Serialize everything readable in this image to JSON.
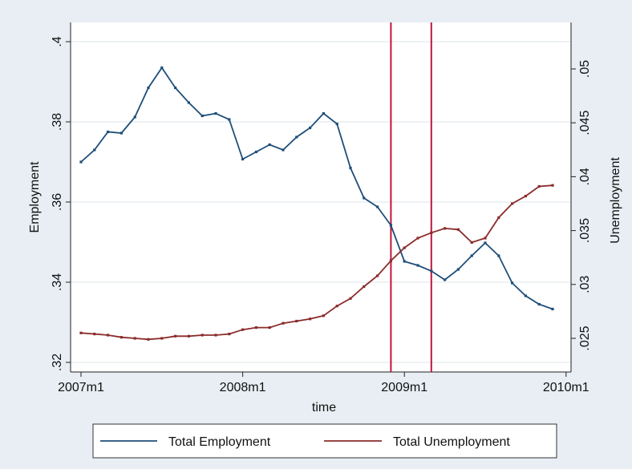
{
  "chart_data": {
    "type": "line",
    "xlabel": "time",
    "ylabel_left": "Employment",
    "ylabel_right": "Unemployment",
    "x_ticks": [
      "2007m1",
      "2008m1",
      "2009m1",
      "2010m1"
    ],
    "y_left_ticks": [
      ".32",
      ".34",
      ".36",
      ".38",
      ".4"
    ],
    "y_right_ticks": [
      ".025",
      ".03",
      ".035",
      ".04",
      ".045",
      ".05"
    ],
    "x_range_months": [
      0,
      36
    ],
    "y_left_range": [
      0.32,
      0.4
    ],
    "y_right_range": [
      0.025,
      0.05
    ],
    "grid": "horizontal",
    "legend_position": "bottom",
    "vlines_month_index": [
      23,
      26
    ],
    "vline_color": "#c0143c",
    "x_dates": [
      "2007m1",
      "2007m2",
      "2007m3",
      "2007m4",
      "2007m5",
      "2007m6",
      "2007m7",
      "2007m8",
      "2007m9",
      "2007m10",
      "2007m11",
      "2007m12",
      "2008m1",
      "2008m2",
      "2008m3",
      "2008m4",
      "2008m5",
      "2008m6",
      "2008m7",
      "2008m8",
      "2008m9",
      "2008m10",
      "2008m11",
      "2008m12",
      "2009m1",
      "2009m2",
      "2009m3",
      "2009m4",
      "2009m5",
      "2009m6",
      "2009m7",
      "2009m8",
      "2009m9",
      "2009m10",
      "2009m11",
      "2009m12"
    ],
    "series": [
      {
        "name": "Total Employment",
        "axis": "left",
        "color": "#1f4e79",
        "values": [
          0.37,
          0.373,
          0.3775,
          0.3772,
          0.3812,
          0.3885,
          0.3935,
          0.3885,
          0.3848,
          0.3815,
          0.3821,
          0.3806,
          0.3707,
          0.3725,
          0.3743,
          0.373,
          0.3762,
          0.3785,
          0.3821,
          0.3795,
          0.3685,
          0.361,
          0.3588,
          0.3542,
          0.3452,
          0.3442,
          0.3428,
          0.3406,
          0.3432,
          0.3466,
          0.3498,
          0.3466,
          0.3398,
          0.3366,
          0.3345,
          0.3333
        ]
      },
      {
        "name": "Total Unemployment",
        "axis": "right",
        "color": "#8b2c2c",
        "values": [
          0.0255,
          0.0254,
          0.0253,
          0.0251,
          0.025,
          0.0249,
          0.025,
          0.0252,
          0.0252,
          0.0253,
          0.0253,
          0.0254,
          0.0258,
          0.026,
          0.026,
          0.0264,
          0.0266,
          0.0268,
          0.0271,
          0.028,
          0.0287,
          0.0298,
          0.0308,
          0.0322,
          0.0334,
          0.0343,
          0.0348,
          0.0352,
          0.0351,
          0.0339,
          0.0343,
          0.0362,
          0.0375,
          0.0382,
          0.0391,
          0.0392
        ]
      }
    ]
  }
}
